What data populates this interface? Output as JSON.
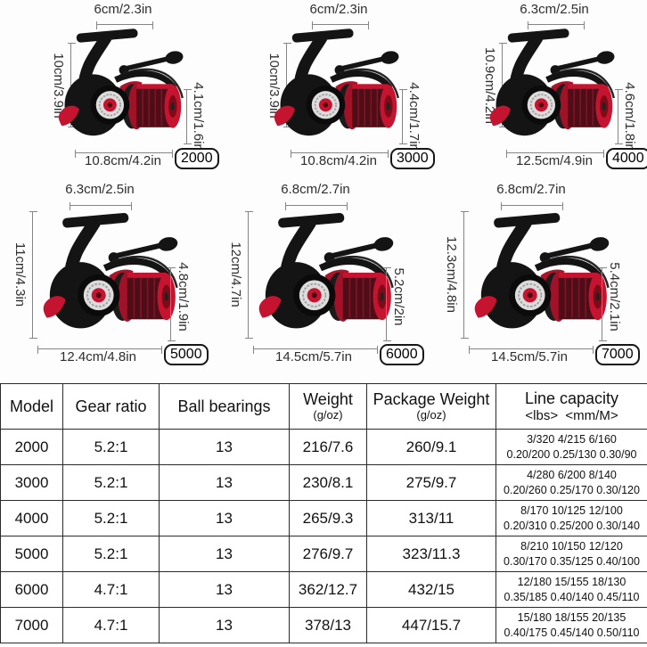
{
  "colors": {
    "accent_red": "#c41430",
    "spool_dark_red": "#4f0d18",
    "body_black": "#141414",
    "dimension_line": "#858585",
    "table_border": "#2a2a2a"
  },
  "reel_panels": [
    {
      "model": "2000",
      "top_width": "6cm/2.3in",
      "body_height": "10cm/3.9in",
      "spool_height": "4.1cm/1.6in",
      "total_length": "10.8cm/4.2in"
    },
    {
      "model": "3000",
      "top_width": "6cm/2.3in",
      "body_height": "10cm/3.9in",
      "spool_height": "4.4cm/1.7in",
      "total_length": "10.8cm/4.2in"
    },
    {
      "model": "4000",
      "top_width": "6.3cm/2.5in",
      "body_height": "10.9cm/4.2in",
      "spool_height": "4.6cm/1.8in",
      "total_length": "12.5cm/4.9in"
    },
    {
      "model": "5000",
      "top_width": "6.3cm/2.5in",
      "body_height": "11cm/4.3in",
      "spool_height": "4.8cm/1.9in",
      "total_length": "12.4cm/4.8in"
    },
    {
      "model": "6000",
      "top_width": "6.8cm/2.7in",
      "body_height": "12cm/4.7in",
      "spool_height": "5.2cm/2in",
      "total_length": "14.5cm/5.7in"
    },
    {
      "model": "7000",
      "top_width": "6.8cm/2.7in",
      "body_height": "12.3cm/4.8in",
      "spool_height": "5.4cm/2.1in",
      "total_length": "14.5cm/5.7in"
    }
  ],
  "table": {
    "headers": [
      {
        "title": "Model",
        "sub": ""
      },
      {
        "title": "Gear ratio",
        "sub": ""
      },
      {
        "title": "Ball bearings",
        "sub": ""
      },
      {
        "title": "Weight",
        "sub": "(g/oz)"
      },
      {
        "title": "Package Weight",
        "sub": "(g/oz)"
      },
      {
        "title": "Line capacity",
        "sub": "<lbs>  <mm/M>"
      }
    ],
    "rows": [
      {
        "model": "2000",
        "gear_ratio": "5.2:1",
        "ball_bearings": "13",
        "weight": "216/7.6",
        "package_weight": "260/9.1",
        "line_capacity_lbs": "3/320 4/215 6/160",
        "line_capacity_mm": "0.20/200 0.25/130 0.30/90"
      },
      {
        "model": "3000",
        "gear_ratio": "5.2:1",
        "ball_bearings": "13",
        "weight": "230/8.1",
        "package_weight": "275/9.7",
        "line_capacity_lbs": "4/280 6/200 8/140",
        "line_capacity_mm": "0.20/260 0.25/170 0.30/120"
      },
      {
        "model": "4000",
        "gear_ratio": "5.2:1",
        "ball_bearings": "13",
        "weight": "265/9.3",
        "package_weight": "313/11",
        "line_capacity_lbs": "8/170 10/125 12/100",
        "line_capacity_mm": "0.20/310 0.25/200 0.30/140"
      },
      {
        "model": "5000",
        "gear_ratio": "5.2:1",
        "ball_bearings": "13",
        "weight": "276/9.7",
        "package_weight": "323/11.3",
        "line_capacity_lbs": "8/210 10/150 12/120",
        "line_capacity_mm": "0.30/170 0.35/125 0.40/100"
      },
      {
        "model": "6000",
        "gear_ratio": "4.7:1",
        "ball_bearings": "13",
        "weight": "362/12.7",
        "package_weight": "432/15",
        "line_capacity_lbs": "12/180 15/155 18/130",
        "line_capacity_mm": "0.35/185 0.40/140 0.45/110"
      },
      {
        "model": "7000",
        "gear_ratio": "4.7:1",
        "ball_bearings": "13",
        "weight": "378/13",
        "package_weight": "447/15.7",
        "line_capacity_lbs": "15/180 18/155 20/135",
        "line_capacity_mm": "0.40/175 0.45/140 0.50/110"
      }
    ]
  }
}
